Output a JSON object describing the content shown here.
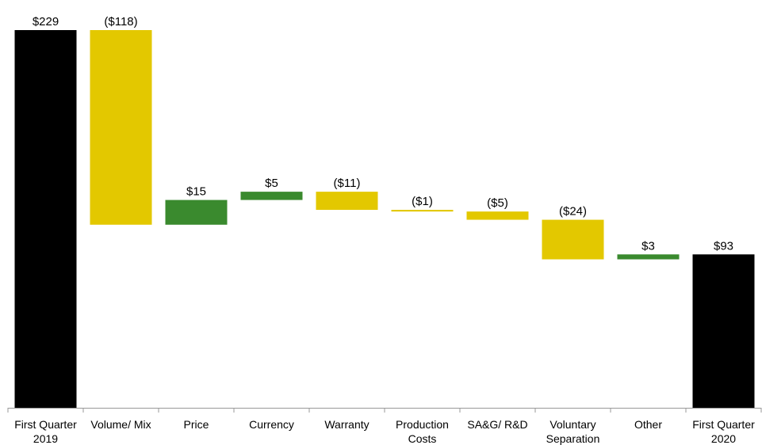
{
  "chart_data": {
    "type": "waterfall",
    "categories": [
      "First Quarter 2019",
      "Volume/ Mix",
      "Price",
      "Currency",
      "Warranty",
      "Production Costs",
      "SA&G/ R&D",
      "Voluntary Separation",
      "Other",
      "First Quarter 2020"
    ],
    "values": [
      229,
      -118,
      15,
      5,
      -11,
      -1,
      -5,
      -24,
      3,
      93
    ],
    "value_labels": [
      "$229",
      "($118)",
      "$15",
      "$5",
      "($11)",
      "($1)",
      "($5)",
      "($24)",
      "$3",
      "$93"
    ],
    "total_color": "#000000",
    "increase_color": "#3a8a2e",
    "decrease_color": "#e3c800"
  }
}
